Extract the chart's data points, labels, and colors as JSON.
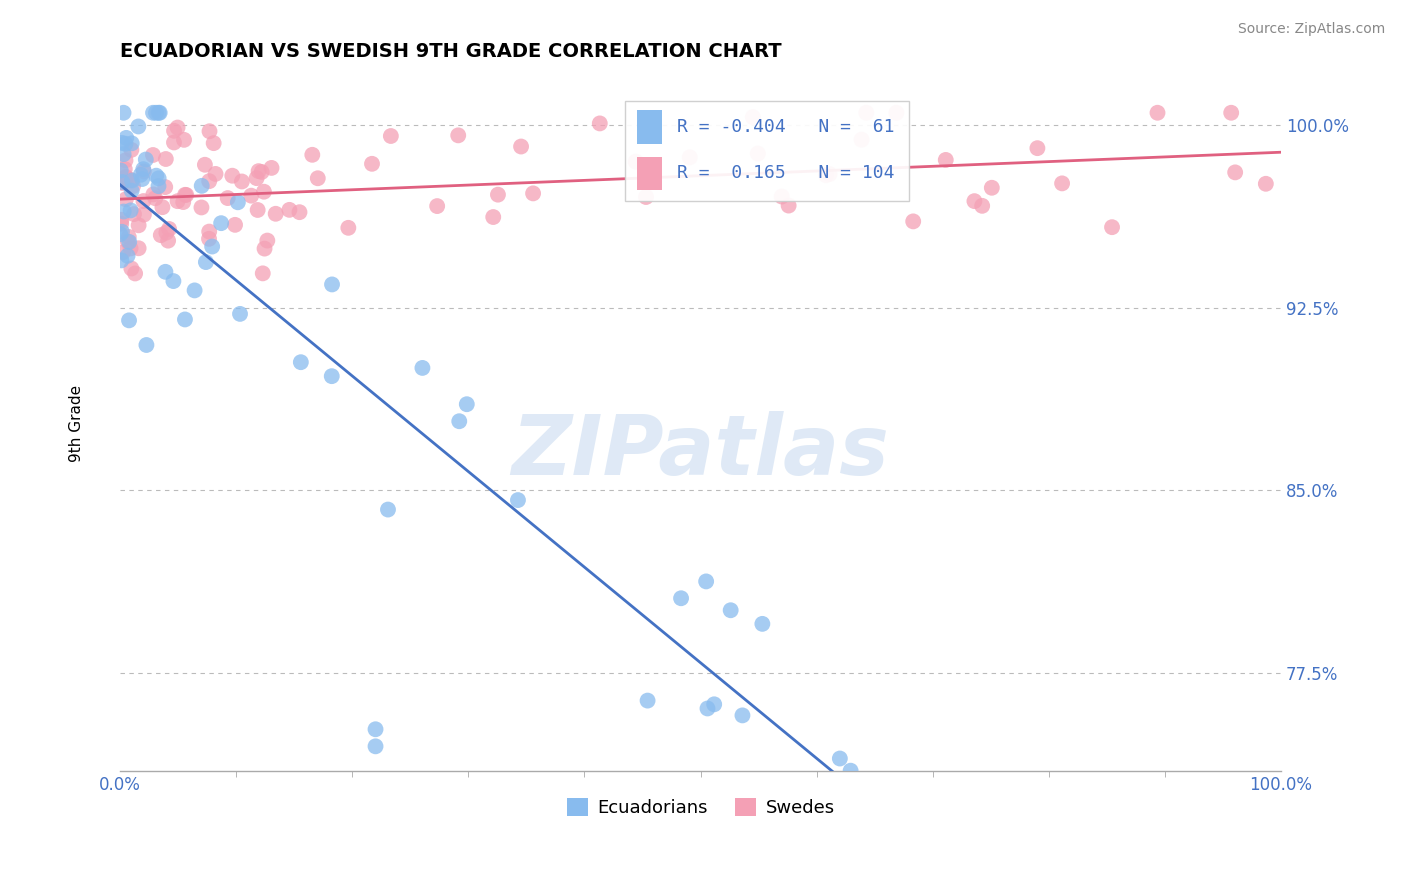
{
  "title": "ECUADORIAN VS SWEDISH 9TH GRADE CORRELATION CHART",
  "source": "Source: ZipAtlas.com",
  "ylabel": "9th Grade",
  "xlim": [
    0.0,
    1.0
  ],
  "ylim": [
    0.735,
    1.02
  ],
  "yticks": [
    0.775,
    0.85,
    0.925,
    1.0
  ],
  "ytick_labels": [
    "77.5%",
    "85.0%",
    "92.5%",
    "100.0%"
  ],
  "xticks": [
    0.0,
    1.0
  ],
  "xtick_labels": [
    "0.0%",
    "100.0%"
  ],
  "legend_R1": "-0.404",
  "legend_N1": "61",
  "legend_R2": "0.165",
  "legend_N2": "104",
  "ecuadorian_color": "#88BBEE",
  "swedish_color": "#F4A0B5",
  "trend_blue": "#4472C4",
  "trend_pink": "#E06080",
  "background_color": "#FFFFFF",
  "grid_color": "#BBBBBB",
  "watermark": "ZIPatlas",
  "ecu_seed": 42,
  "swe_seed": 99
}
